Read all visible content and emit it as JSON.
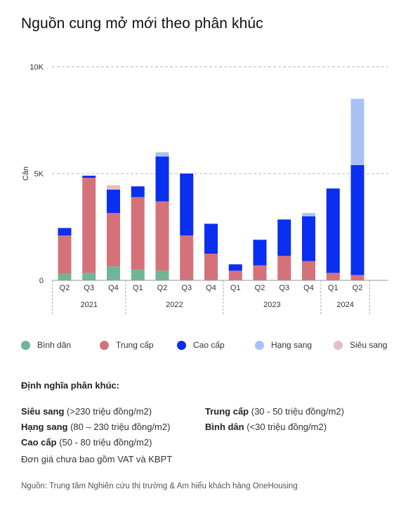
{
  "title": "Nguồn cung mở mới theo phân khúc",
  "chart_data": {
    "type": "bar",
    "stacked": true,
    "ylabel": "Căn",
    "ylim": [
      0,
      10000
    ],
    "ytick_values": [
      0,
      5000,
      10000
    ],
    "ytick_labels": [
      "0",
      "5K",
      "10K"
    ],
    "grid": "horizontal-dashed",
    "categories": [
      "Q2",
      "Q3",
      "Q4",
      "Q1",
      "Q2",
      "Q3",
      "Q4",
      "Q1",
      "Q2",
      "Q3",
      "Q4",
      "Q1",
      "Q2"
    ],
    "year_groups": [
      {
        "label": "2021",
        "count": 3
      },
      {
        "label": "2022",
        "count": 4
      },
      {
        "label": "2023",
        "count": 4
      },
      {
        "label": "2024",
        "count": 2
      }
    ],
    "series": [
      {
        "name": "Bình dân",
        "color": "#6fb596",
        "values": [
          300,
          350,
          650,
          500,
          450,
          0,
          0,
          0,
          0,
          0,
          0,
          0,
          0
        ]
      },
      {
        "name": "Trung cấp",
        "color": "#d4727a",
        "values": [
          1800,
          4450,
          2500,
          3400,
          3250,
          2100,
          1250,
          450,
          700,
          1150,
          900,
          350,
          250
        ]
      },
      {
        "name": "Cao cấp",
        "color": "#0a2ff0",
        "values": [
          350,
          100,
          1100,
          500,
          2100,
          2900,
          1400,
          300,
          1200,
          1700,
          2100,
          3950,
          5150
        ]
      },
      {
        "name": "Hạng sang",
        "color": "#a8c2f5",
        "values": [
          0,
          0,
          0,
          0,
          200,
          0,
          0,
          0,
          0,
          0,
          150,
          0,
          3100
        ]
      },
      {
        "name": "Siêu sang",
        "color": "#e6bcc8",
        "values": [
          0,
          0,
          200,
          0,
          0,
          0,
          0,
          0,
          0,
          0,
          0,
          0,
          0
        ]
      }
    ],
    "legend_position": "bottom"
  },
  "definitions": {
    "heading": "Định nghĩa phân khúc:",
    "items": [
      {
        "name": "Siêu sang",
        "range": " (>230 triệu đồng/m2)"
      },
      {
        "name": "Trung cấp",
        "range": " (30 - 50 triệu đồng/m2)"
      },
      {
        "name": "Hạng sang",
        "range": " (80 – 230 triệu đồng/m2)"
      },
      {
        "name": "Bình dân",
        "range": " (<30 triệu đồng/m2)"
      },
      {
        "name": "Cao cấp",
        "range": " (50 - 80 triệu đồng/m2)"
      }
    ]
  },
  "note": "Đơn giá chưa bao gồm VAT và KBPT",
  "source": "Nguồn: Trung tâm Nghiên cứu thị trường & Am hiểu khách hàng OneHousing"
}
